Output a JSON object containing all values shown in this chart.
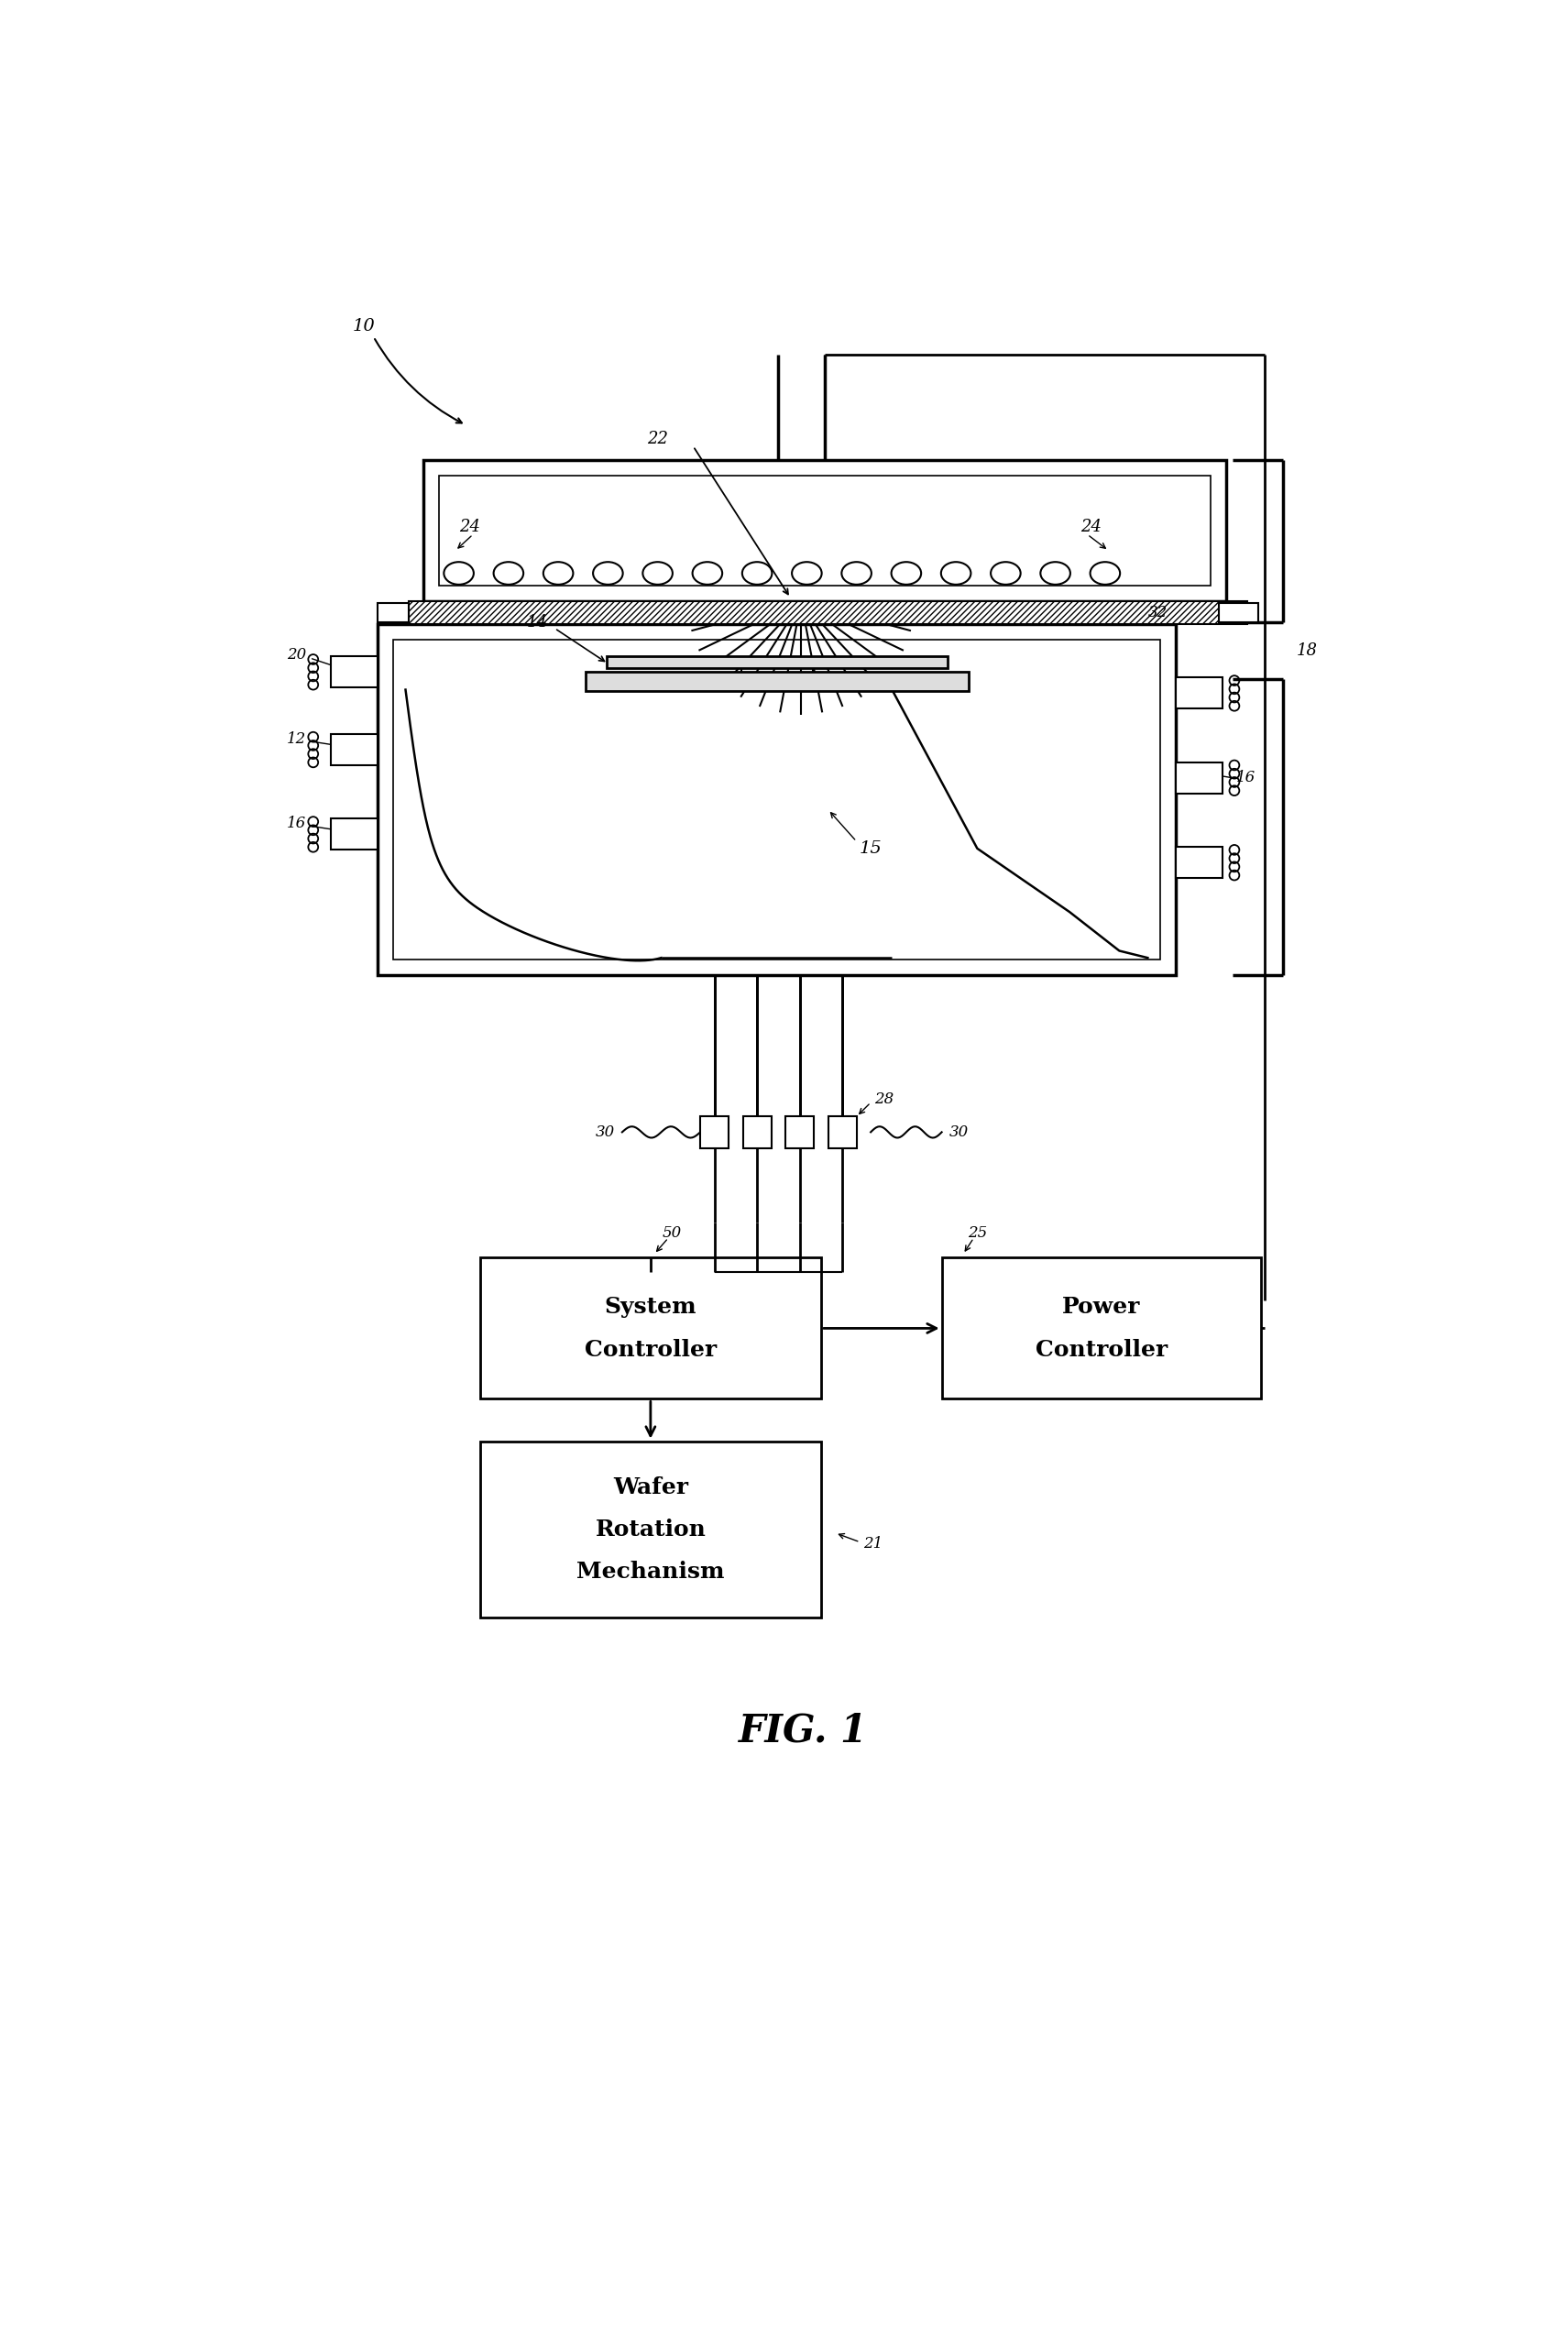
{
  "fig_width": 17.11,
  "fig_height": 25.37,
  "background_color": "#ffffff",
  "fig_title": "FIG. 1",
  "labels": {
    "fig_num": "10",
    "lamp_array": "22",
    "lamp_left": "24",
    "lamp_right": "24",
    "wafer": "14",
    "chamber": "15",
    "hatch_label": "32",
    "right_bracket": "18",
    "left_top": "20",
    "left_mid": "12",
    "left_bot": "16",
    "right_side": "16",
    "fiber_left": "30",
    "fiber_right": "30",
    "fiber_boxes": "28",
    "sys_ctrl_label": "50",
    "power_ctrl_label": "25",
    "wrm_label": "21"
  }
}
